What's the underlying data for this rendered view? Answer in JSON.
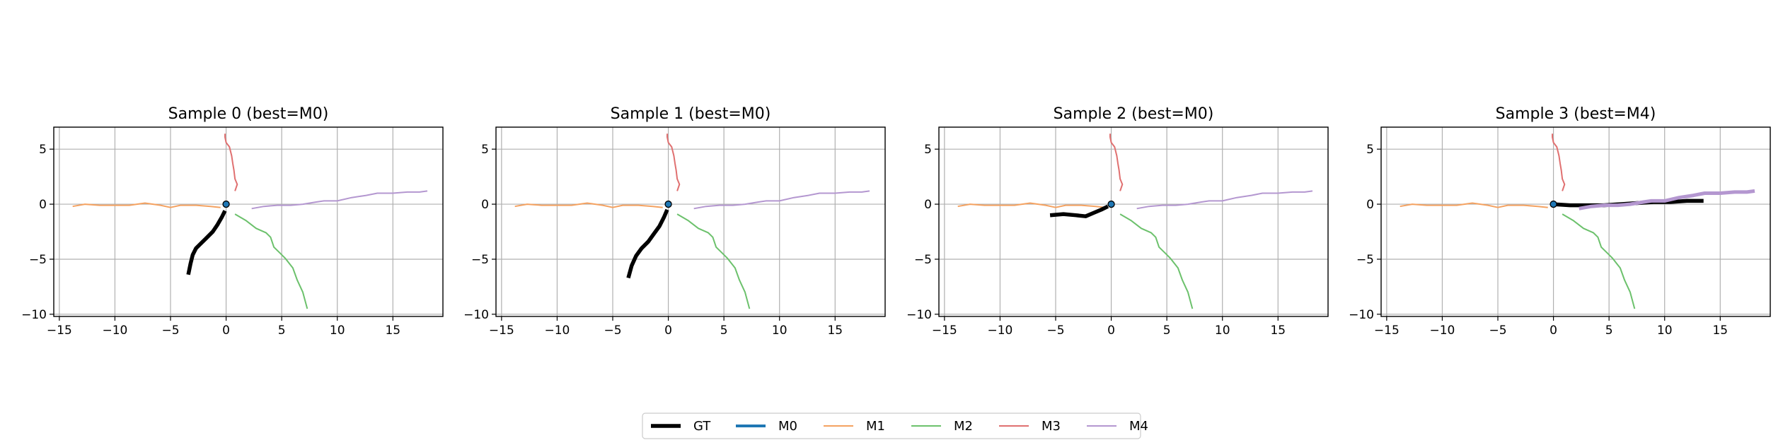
{
  "colors": {
    "GT": "#000000",
    "M0": "#1f77b4",
    "M1": "#f4a261",
    "M2": "#6cc16c",
    "M3": "#e07070",
    "M4": "#b497d0",
    "grid": "#b0b0b0"
  },
  "legend": [
    "GT",
    "M0",
    "M1",
    "M2",
    "M3",
    "M4"
  ],
  "chart_data": [
    {
      "type": "line",
      "title": "Sample 0 (best=M0)",
      "xlim": [
        -15.5,
        19.5
      ],
      "ylim": [
        -10.2,
        7
      ],
      "xticks": [
        -15,
        -10,
        -5,
        0,
        5,
        10,
        15
      ],
      "yticks": [
        -10,
        -5,
        0,
        5
      ],
      "grid": true,
      "series": [
        {
          "name": "M1",
          "points": [
            [
              -13.8,
              -0.2
            ],
            [
              -12.7,
              0.0
            ],
            [
              -11.4,
              -0.1
            ],
            [
              -10.0,
              -0.1
            ],
            [
              -8.7,
              -0.1
            ],
            [
              -7.3,
              0.1
            ],
            [
              -5.9,
              -0.1
            ],
            [
              -5.0,
              -0.3
            ],
            [
              -4.1,
              -0.1
            ],
            [
              -2.7,
              -0.1
            ],
            [
              -1.4,
              -0.2
            ],
            [
              -0.5,
              -0.3
            ]
          ]
        },
        {
          "name": "M2",
          "points": [
            [
              0.8,
              -0.9
            ],
            [
              1.8,
              -1.5
            ],
            [
              2.7,
              -2.2
            ],
            [
              3.6,
              -2.6
            ],
            [
              4.0,
              -3.0
            ],
            [
              4.3,
              -3.9
            ],
            [
              4.8,
              -4.4
            ],
            [
              5.3,
              -4.9
            ],
            [
              6.0,
              -5.8
            ],
            [
              6.4,
              -6.9
            ],
            [
              6.9,
              -8.0
            ],
            [
              7.3,
              -9.5
            ]
          ]
        },
        {
          "name": "M3",
          "points": [
            [
              0.8,
              1.2
            ],
            [
              1.0,
              1.8
            ],
            [
              0.8,
              2.3
            ],
            [
              0.7,
              3.1
            ],
            [
              0.6,
              3.7
            ],
            [
              0.5,
              4.4
            ],
            [
              0.3,
              5.2
            ],
            [
              0.0,
              5.6
            ],
            [
              -0.1,
              6.1
            ],
            [
              -0.1,
              6.4
            ]
          ]
        },
        {
          "name": "M4",
          "points": [
            [
              2.3,
              -0.4
            ],
            [
              3.4,
              -0.2
            ],
            [
              4.6,
              -0.1
            ],
            [
              5.8,
              -0.1
            ],
            [
              6.9,
              0.0
            ],
            [
              8.1,
              0.2
            ],
            [
              8.8,
              0.3
            ],
            [
              10.0,
              0.3
            ],
            [
              11.3,
              0.6
            ],
            [
              12.6,
              0.8
            ],
            [
              13.6,
              1.0
            ],
            [
              15.0,
              1.0
            ],
            [
              16.3,
              1.1
            ],
            [
              17.4,
              1.1
            ],
            [
              18.1,
              1.2
            ]
          ]
        },
        {
          "name": "M0",
          "points": [
            [
              0.0,
              0.0
            ],
            [
              0.05,
              -0.02
            ]
          ]
        },
        {
          "name": "GT",
          "points": [
            [
              -0.1,
              -0.6
            ],
            [
              -0.4,
              -1.2
            ],
            [
              -0.8,
              -1.9
            ],
            [
              -1.2,
              -2.5
            ],
            [
              -1.8,
              -3.1
            ],
            [
              -2.3,
              -3.6
            ],
            [
              -2.7,
              -4.0
            ],
            [
              -3.0,
              -4.6
            ],
            [
              -3.2,
              -5.4
            ],
            [
              -3.4,
              -6.4
            ]
          ]
        }
      ]
    },
    {
      "type": "line",
      "title": "Sample 1 (best=M0)",
      "xlim": [
        -15.5,
        19.5
      ],
      "ylim": [
        -10.2,
        7
      ],
      "xticks": [
        -15,
        -10,
        -5,
        0,
        5,
        10,
        15
      ],
      "yticks": [
        -10,
        -5,
        0,
        5
      ],
      "grid": true,
      "series": [
        {
          "name": "M1",
          "points": [
            [
              -13.8,
              -0.2
            ],
            [
              -12.7,
              0.0
            ],
            [
              -11.4,
              -0.1
            ],
            [
              -10.0,
              -0.1
            ],
            [
              -8.7,
              -0.1
            ],
            [
              -7.3,
              0.1
            ],
            [
              -5.9,
              -0.1
            ],
            [
              -5.0,
              -0.3
            ],
            [
              -4.1,
              -0.1
            ],
            [
              -2.7,
              -0.1
            ],
            [
              -1.4,
              -0.2
            ],
            [
              -0.5,
              -0.3
            ]
          ]
        },
        {
          "name": "M2",
          "points": [
            [
              0.8,
              -0.9
            ],
            [
              1.8,
              -1.5
            ],
            [
              2.7,
              -2.2
            ],
            [
              3.6,
              -2.6
            ],
            [
              4.0,
              -3.0
            ],
            [
              4.3,
              -3.9
            ],
            [
              4.8,
              -4.4
            ],
            [
              5.3,
              -4.9
            ],
            [
              6.0,
              -5.8
            ],
            [
              6.4,
              -6.9
            ],
            [
              6.9,
              -8.0
            ],
            [
              7.3,
              -9.5
            ]
          ]
        },
        {
          "name": "M3",
          "points": [
            [
              0.8,
              1.2
            ],
            [
              1.0,
              1.8
            ],
            [
              0.8,
              2.3
            ],
            [
              0.7,
              3.1
            ],
            [
              0.6,
              3.7
            ],
            [
              0.5,
              4.4
            ],
            [
              0.3,
              5.2
            ],
            [
              0.0,
              5.6
            ],
            [
              -0.1,
              6.1
            ],
            [
              -0.1,
              6.4
            ]
          ]
        },
        {
          "name": "M4",
          "points": [
            [
              2.3,
              -0.4
            ],
            [
              3.4,
              -0.2
            ],
            [
              4.6,
              -0.1
            ],
            [
              5.8,
              -0.1
            ],
            [
              6.9,
              0.0
            ],
            [
              8.1,
              0.2
            ],
            [
              8.8,
              0.3
            ],
            [
              10.0,
              0.3
            ],
            [
              11.3,
              0.6
            ],
            [
              12.6,
              0.8
            ],
            [
              13.6,
              1.0
            ],
            [
              15.0,
              1.0
            ],
            [
              16.3,
              1.1
            ],
            [
              17.4,
              1.1
            ],
            [
              18.1,
              1.2
            ]
          ]
        },
        {
          "name": "M0",
          "points": [
            [
              0.0,
              0.0
            ],
            [
              0.05,
              -0.02
            ]
          ]
        },
        {
          "name": "GT",
          "points": [
            [
              -0.1,
              -0.5
            ],
            [
              -0.4,
              -1.2
            ],
            [
              -0.8,
              -2.0
            ],
            [
              -1.3,
              -2.7
            ],
            [
              -1.8,
              -3.4
            ],
            [
              -2.4,
              -4.0
            ],
            [
              -2.9,
              -4.7
            ],
            [
              -3.3,
              -5.6
            ],
            [
              -3.6,
              -6.7
            ]
          ]
        }
      ]
    },
    {
      "type": "line",
      "title": "Sample 2 (best=M0)",
      "xlim": [
        -15.5,
        19.5
      ],
      "ylim": [
        -10.2,
        7
      ],
      "xticks": [
        -15,
        -10,
        -5,
        0,
        5,
        10,
        15
      ],
      "yticks": [
        -10,
        -5,
        0,
        5
      ],
      "grid": true,
      "series": [
        {
          "name": "M1",
          "points": [
            [
              -13.8,
              -0.2
            ],
            [
              -12.7,
              0.0
            ],
            [
              -11.4,
              -0.1
            ],
            [
              -10.0,
              -0.1
            ],
            [
              -8.7,
              -0.1
            ],
            [
              -7.3,
              0.1
            ],
            [
              -5.9,
              -0.1
            ],
            [
              -5.0,
              -0.3
            ],
            [
              -4.1,
              -0.1
            ],
            [
              -2.7,
              -0.1
            ],
            [
              -1.4,
              -0.2
            ],
            [
              -0.5,
              -0.3
            ]
          ]
        },
        {
          "name": "M2",
          "points": [
            [
              0.8,
              -0.9
            ],
            [
              1.8,
              -1.5
            ],
            [
              2.7,
              -2.2
            ],
            [
              3.6,
              -2.6
            ],
            [
              4.0,
              -3.0
            ],
            [
              4.3,
              -3.9
            ],
            [
              4.8,
              -4.4
            ],
            [
              5.3,
              -4.9
            ],
            [
              6.0,
              -5.8
            ],
            [
              6.4,
              -6.9
            ],
            [
              6.9,
              -8.0
            ],
            [
              7.3,
              -9.5
            ]
          ]
        },
        {
          "name": "M3",
          "points": [
            [
              0.8,
              1.2
            ],
            [
              1.0,
              1.8
            ],
            [
              0.8,
              2.3
            ],
            [
              0.7,
              3.1
            ],
            [
              0.6,
              3.7
            ],
            [
              0.5,
              4.4
            ],
            [
              0.3,
              5.2
            ],
            [
              0.0,
              5.6
            ],
            [
              -0.1,
              6.1
            ],
            [
              -0.1,
              6.4
            ]
          ]
        },
        {
          "name": "M4",
          "points": [
            [
              2.3,
              -0.4
            ],
            [
              3.4,
              -0.2
            ],
            [
              4.6,
              -0.1
            ],
            [
              5.8,
              -0.1
            ],
            [
              6.9,
              0.0
            ],
            [
              8.1,
              0.2
            ],
            [
              8.8,
              0.3
            ],
            [
              10.0,
              0.3
            ],
            [
              11.3,
              0.6
            ],
            [
              12.6,
              0.8
            ],
            [
              13.6,
              1.0
            ],
            [
              15.0,
              1.0
            ],
            [
              16.3,
              1.1
            ],
            [
              17.4,
              1.1
            ],
            [
              18.1,
              1.2
            ]
          ]
        },
        {
          "name": "M0",
          "points": [
            [
              0.0,
              0.0
            ],
            [
              0.05,
              -0.02
            ]
          ]
        },
        {
          "name": "GT",
          "points": [
            [
              -0.3,
              -0.2
            ],
            [
              -0.9,
              -0.5
            ],
            [
              -1.6,
              -0.8
            ],
            [
              -2.3,
              -1.1
            ],
            [
              -3.2,
              -1.0
            ],
            [
              -4.3,
              -0.9
            ],
            [
              -5.5,
              -1.0
            ]
          ]
        }
      ]
    },
    {
      "type": "line",
      "title": "Sample 3 (best=M4)",
      "xlim": [
        -15.5,
        19.5
      ],
      "ylim": [
        -10.2,
        7
      ],
      "xticks": [
        -15,
        -10,
        -5,
        0,
        5,
        10,
        15
      ],
      "yticks": [
        -10,
        -5,
        0,
        5
      ],
      "grid": true,
      "thick_series": "M4",
      "series": [
        {
          "name": "M1",
          "points": [
            [
              -13.8,
              -0.2
            ],
            [
              -12.7,
              0.0
            ],
            [
              -11.4,
              -0.1
            ],
            [
              -10.0,
              -0.1
            ],
            [
              -8.7,
              -0.1
            ],
            [
              -7.3,
              0.1
            ],
            [
              -5.9,
              -0.1
            ],
            [
              -5.0,
              -0.3
            ],
            [
              -4.1,
              -0.1
            ],
            [
              -2.7,
              -0.1
            ],
            [
              -1.4,
              -0.2
            ],
            [
              -0.5,
              -0.3
            ]
          ]
        },
        {
          "name": "M2",
          "points": [
            [
              0.8,
              -0.9
            ],
            [
              1.8,
              -1.5
            ],
            [
              2.7,
              -2.2
            ],
            [
              3.6,
              -2.6
            ],
            [
              4.0,
              -3.0
            ],
            [
              4.3,
              -3.9
            ],
            [
              4.8,
              -4.4
            ],
            [
              5.3,
              -4.9
            ],
            [
              6.0,
              -5.8
            ],
            [
              6.4,
              -6.9
            ],
            [
              6.9,
              -8.0
            ],
            [
              7.3,
              -9.5
            ]
          ]
        },
        {
          "name": "M3",
          "points": [
            [
              0.8,
              1.2
            ],
            [
              1.0,
              1.8
            ],
            [
              0.8,
              2.3
            ],
            [
              0.7,
              3.1
            ],
            [
              0.6,
              3.7
            ],
            [
              0.5,
              4.4
            ],
            [
              0.3,
              5.2
            ],
            [
              0.0,
              5.6
            ],
            [
              -0.1,
              6.1
            ],
            [
              -0.1,
              6.4
            ]
          ]
        },
        {
          "name": "GT",
          "points": [
            [
              0.0,
              0.0
            ],
            [
              1.5,
              -0.1
            ],
            [
              3.0,
              -0.1
            ],
            [
              4.5,
              -0.1
            ],
            [
              6.0,
              0.0
            ],
            [
              7.5,
              0.1
            ],
            [
              9.0,
              0.2
            ],
            [
              10.5,
              0.2
            ],
            [
              12.0,
              0.3
            ],
            [
              13.5,
              0.3
            ]
          ]
        },
        {
          "name": "M4",
          "points": [
            [
              2.3,
              -0.4
            ],
            [
              3.4,
              -0.2
            ],
            [
              4.6,
              -0.1
            ],
            [
              5.8,
              -0.1
            ],
            [
              6.9,
              0.0
            ],
            [
              8.1,
              0.2
            ],
            [
              8.8,
              0.3
            ],
            [
              10.0,
              0.3
            ],
            [
              11.3,
              0.6
            ],
            [
              12.6,
              0.8
            ],
            [
              13.6,
              1.0
            ],
            [
              15.0,
              1.0
            ],
            [
              16.3,
              1.1
            ],
            [
              17.4,
              1.1
            ],
            [
              18.1,
              1.2
            ]
          ]
        },
        {
          "name": "M0",
          "points": [
            [
              0.0,
              0.0
            ],
            [
              0.05,
              -0.02
            ]
          ]
        }
      ]
    }
  ]
}
